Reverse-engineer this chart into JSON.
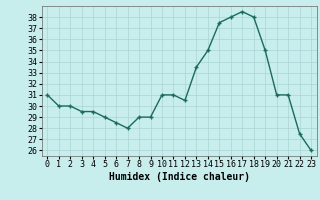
{
  "x": [
    0,
    1,
    2,
    3,
    4,
    5,
    6,
    7,
    8,
    9,
    10,
    11,
    12,
    13,
    14,
    15,
    16,
    17,
    18,
    19,
    20,
    21,
    22,
    23
  ],
  "y": [
    31,
    30,
    30,
    29.5,
    29.5,
    29,
    28.5,
    28,
    29,
    29,
    31,
    31,
    30.5,
    33.5,
    35,
    37.5,
    38,
    38.5,
    38,
    35,
    31,
    31,
    27.5,
    26
  ],
  "xlabel": "Humidex (Indice chaleur)",
  "xlim": [
    -0.5,
    23.5
  ],
  "ylim": [
    25.5,
    39
  ],
  "yticks": [
    26,
    27,
    28,
    29,
    30,
    31,
    32,
    33,
    34,
    35,
    36,
    37,
    38
  ],
  "xtick_labels": [
    "0",
    "1",
    "2",
    "3",
    "4",
    "5",
    "6",
    "7",
    "8",
    "9",
    "10",
    "11",
    "12",
    "13",
    "14",
    "15",
    "16",
    "17",
    "18",
    "19",
    "20",
    "21",
    "22",
    "23"
  ],
  "line_color": "#1a6b5a",
  "bg_color": "#c8eded",
  "grid_color": "#aad4d4",
  "label_fontsize": 7,
  "tick_fontsize": 6
}
